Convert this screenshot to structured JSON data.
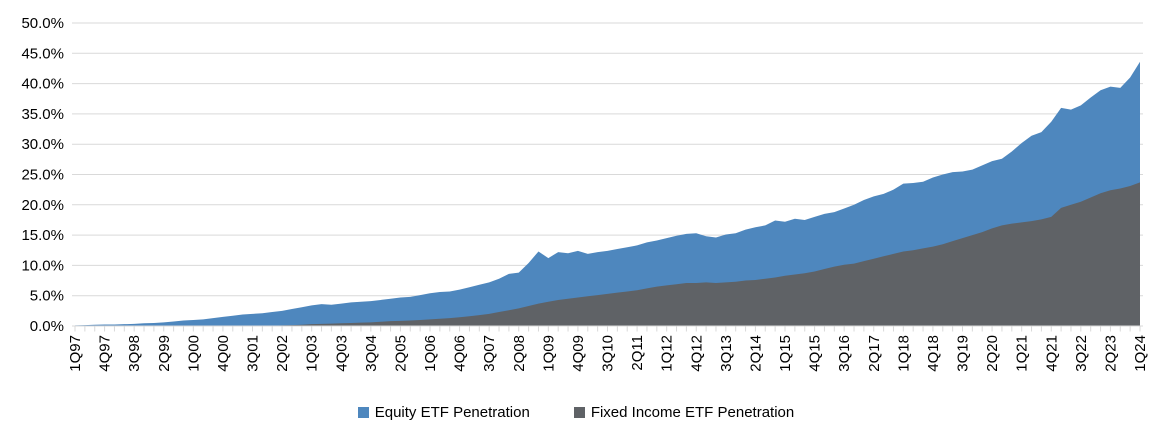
{
  "chart_data": {
    "type": "area",
    "title": "",
    "xlabel": "",
    "ylabel": "",
    "ylim": [
      0,
      50
    ],
    "ytick_step": 5,
    "y_tick_labels": [
      "0.0%",
      "5.0%",
      "10.0%",
      "15.0%",
      "20.0%",
      "25.0%",
      "30.0%",
      "35.0%",
      "40.0%",
      "45.0%",
      "50.0%"
    ],
    "x_tick_label_every": 3,
    "x_tick_labels_shown": [
      "1Q97",
      "4Q97",
      "3Q98",
      "2Q99",
      "1Q00",
      "4Q00",
      "3Q01",
      "2Q02",
      "1Q03",
      "4Q03",
      "3Q04",
      "2Q05",
      "1Q06",
      "4Q06",
      "3Q07",
      "2Q08",
      "1Q09",
      "4Q09",
      "3Q10",
      "2Q11",
      "1Q12",
      "4Q12",
      "3Q13",
      "2Q14",
      "1Q15",
      "4Q15",
      "3Q16",
      "2Q17",
      "1Q18",
      "4Q18",
      "3Q19",
      "2Q20",
      "1Q21",
      "4Q21",
      "3Q22",
      "2Q23",
      "1Q24"
    ],
    "grid": "horizontal",
    "gridline_color": "#D9D9D9",
    "axis_color": "#D9D9D9",
    "text_color": "#000000",
    "legend_position": "bottom",
    "areas_mode": "overlaid-from-zero (fixed income drawn in front of equity)",
    "categories": [
      "1Q97",
      "2Q97",
      "3Q97",
      "4Q97",
      "1Q98",
      "2Q98",
      "3Q98",
      "4Q98",
      "1Q99",
      "2Q99",
      "3Q99",
      "4Q99",
      "1Q00",
      "2Q00",
      "3Q00",
      "4Q00",
      "1Q01",
      "2Q01",
      "3Q01",
      "4Q01",
      "1Q02",
      "2Q02",
      "3Q02",
      "4Q02",
      "1Q03",
      "2Q03",
      "3Q03",
      "4Q03",
      "1Q04",
      "2Q04",
      "3Q04",
      "4Q04",
      "1Q05",
      "2Q05",
      "3Q05",
      "4Q05",
      "1Q06",
      "2Q06",
      "3Q06",
      "4Q06",
      "1Q07",
      "2Q07",
      "3Q07",
      "4Q07",
      "1Q08",
      "2Q08",
      "3Q08",
      "4Q08",
      "1Q09",
      "2Q09",
      "3Q09",
      "4Q09",
      "1Q10",
      "2Q10",
      "3Q10",
      "4Q10",
      "1Q11",
      "2Q11",
      "3Q11",
      "4Q11",
      "1Q12",
      "2Q12",
      "3Q12",
      "4Q12",
      "1Q13",
      "2Q13",
      "3Q13",
      "4Q13",
      "1Q14",
      "2Q14",
      "3Q14",
      "4Q14",
      "1Q15",
      "2Q15",
      "3Q15",
      "4Q15",
      "1Q16",
      "2Q16",
      "3Q16",
      "4Q16",
      "1Q17",
      "2Q17",
      "3Q17",
      "4Q17",
      "1Q18",
      "2Q18",
      "3Q18",
      "4Q18",
      "1Q19",
      "2Q19",
      "3Q19",
      "4Q19",
      "1Q20",
      "2Q20",
      "3Q20",
      "4Q20",
      "1Q21",
      "2Q21",
      "3Q21",
      "4Q21",
      "1Q22",
      "2Q22",
      "3Q22",
      "4Q22",
      "1Q23",
      "2Q23",
      "3Q23",
      "4Q23",
      "1Q24"
    ],
    "series": [
      {
        "id": "equity",
        "name": "Equity ETF Penetration",
        "color": "#4E87BE",
        "values": [
          0.1,
          0.15,
          0.2,
          0.25,
          0.25,
          0.3,
          0.35,
          0.45,
          0.5,
          0.6,
          0.75,
          0.9,
          1.0,
          1.1,
          1.3,
          1.5,
          1.7,
          1.9,
          2.0,
          2.1,
          2.3,
          2.5,
          2.8,
          3.1,
          3.4,
          3.6,
          3.5,
          3.7,
          3.9,
          4.0,
          4.1,
          4.3,
          4.5,
          4.7,
          4.8,
          5.1,
          5.4,
          5.6,
          5.7,
          6.0,
          6.4,
          6.8,
          7.2,
          7.8,
          8.6,
          8.8,
          10.4,
          12.3,
          11.2,
          12.2,
          12.0,
          12.4,
          11.9,
          12.2,
          12.4,
          12.7,
          13.0,
          13.3,
          13.8,
          14.1,
          14.5,
          14.9,
          15.2,
          15.3,
          14.8,
          14.6,
          15.1,
          15.3,
          15.9,
          16.3,
          16.6,
          17.4,
          17.2,
          17.7,
          17.5,
          18.0,
          18.5,
          18.8,
          19.4,
          20.0,
          20.8,
          21.4,
          21.8,
          22.5,
          23.5,
          23.6,
          23.8,
          24.5,
          25.0,
          25.4,
          25.5,
          25.8,
          26.5,
          27.2,
          27.6,
          28.8,
          30.2,
          31.4,
          32.0,
          33.7,
          36.0,
          35.7,
          36.4,
          37.7,
          38.9,
          39.5,
          39.3,
          41.0,
          43.6
        ]
      },
      {
        "id": "fixed-income",
        "name": "Fixed Income ETF Penetration",
        "color": "#5F6266",
        "values": [
          0,
          0,
          0,
          0,
          0,
          0,
          0,
          0,
          0,
          0,
          0,
          0,
          0,
          0,
          0,
          0,
          0,
          0,
          0,
          0,
          0.05,
          0.1,
          0.15,
          0.2,
          0.3,
          0.35,
          0.4,
          0.45,
          0.5,
          0.55,
          0.6,
          0.7,
          0.8,
          0.85,
          0.9,
          1.0,
          1.1,
          1.2,
          1.3,
          1.45,
          1.6,
          1.8,
          2.0,
          2.3,
          2.6,
          2.9,
          3.3,
          3.7,
          4.0,
          4.3,
          4.5,
          4.7,
          4.9,
          5.1,
          5.3,
          5.5,
          5.7,
          5.9,
          6.2,
          6.5,
          6.7,
          6.9,
          7.1,
          7.1,
          7.2,
          7.1,
          7.2,
          7.3,
          7.5,
          7.6,
          7.8,
          8.0,
          8.3,
          8.5,
          8.7,
          9.0,
          9.4,
          9.8,
          10.1,
          10.3,
          10.7,
          11.1,
          11.5,
          11.9,
          12.3,
          12.5,
          12.8,
          13.1,
          13.5,
          14.0,
          14.5,
          15.0,
          15.5,
          16.1,
          16.6,
          16.9,
          17.1,
          17.3,
          17.6,
          18.0,
          19.5,
          20.0,
          20.5,
          21.2,
          21.9,
          22.4,
          22.7,
          23.1,
          23.7
        ]
      }
    ]
  }
}
